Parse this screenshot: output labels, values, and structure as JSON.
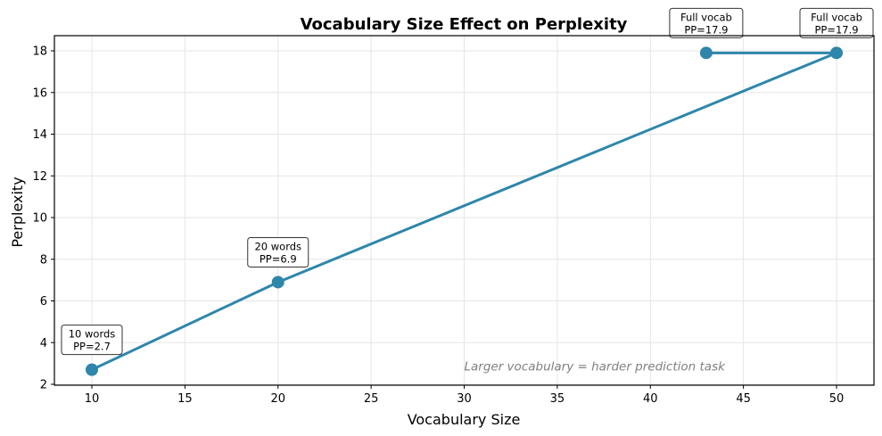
{
  "chart_data": {
    "type": "line",
    "title": "Vocabulary Size Effect on Perplexity",
    "xlabel": "Vocabulary Size",
    "ylabel": "Perplexity",
    "xlim": [
      8,
      52
    ],
    "ylim": [
      2,
      18.7
    ],
    "xticks": [
      10,
      15,
      20,
      25,
      30,
      35,
      40,
      45,
      50
    ],
    "yticks": [
      2,
      4,
      6,
      8,
      10,
      12,
      14,
      16,
      18
    ],
    "grid": true,
    "series": [
      {
        "name": "Perplexity",
        "color": "#2e86ab",
        "x": [
          10,
          20,
          50,
          43
        ],
        "y": [
          2.7,
          6.9,
          17.9,
          17.9
        ]
      }
    ],
    "annotations": [
      {
        "x": 10,
        "y": 2.7,
        "line1": "10 words",
        "line2": "PP=2.7"
      },
      {
        "x": 20,
        "y": 6.9,
        "line1": "20 words",
        "line2": "PP=6.9"
      },
      {
        "x": 50,
        "y": 17.9,
        "line1": "Full vocab",
        "line2": "PP=17.9"
      },
      {
        "x": 43,
        "y": 17.9,
        "line1": "Full vocab",
        "line2": "PP=17.9"
      }
    ],
    "note": "Larger vocabulary = harder prediction task",
    "note_position": {
      "x": 30,
      "y": 2.8
    }
  }
}
